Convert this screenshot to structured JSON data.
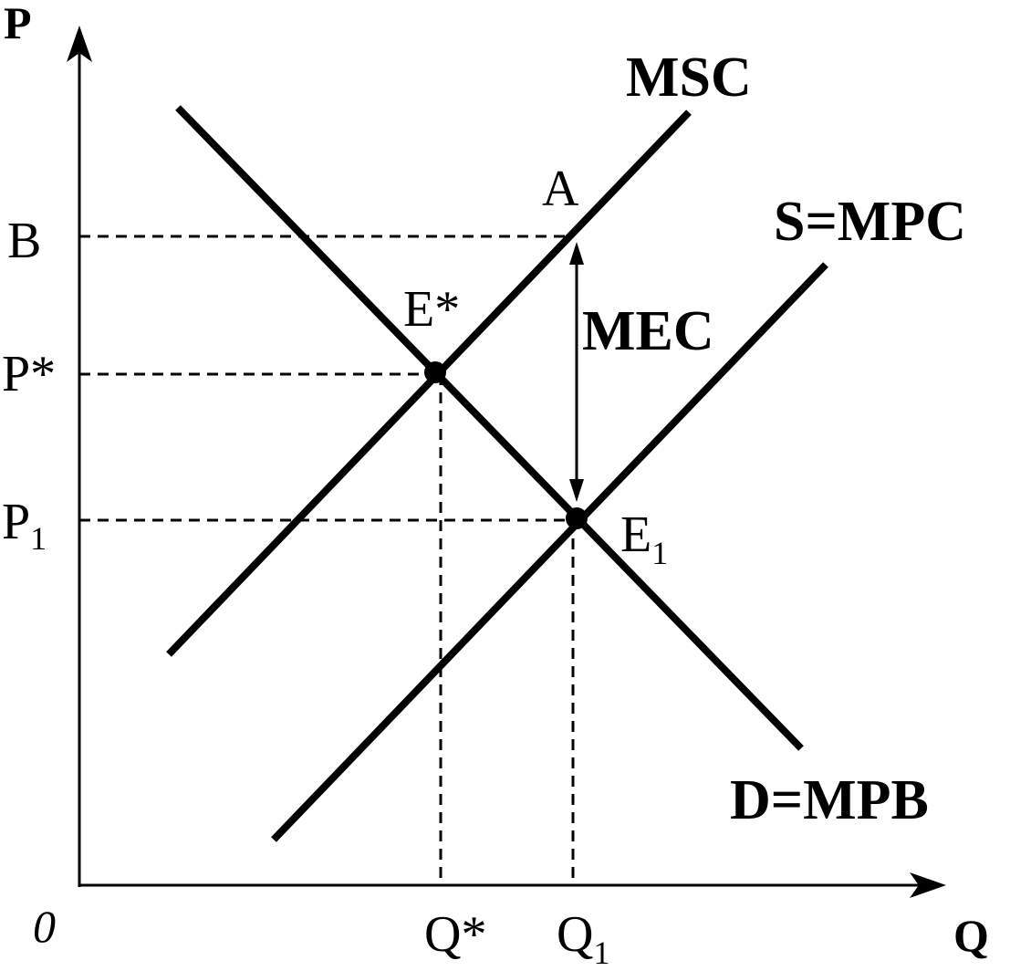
{
  "axes": {
    "y_label": "P",
    "x_label": "Q",
    "origin": "0"
  },
  "curves": [
    {
      "label": "MSC"
    },
    {
      "label": "S=MPC"
    },
    {
      "label": "D=MPB"
    }
  ],
  "points": [
    {
      "label": "A"
    },
    {
      "label": "E*"
    },
    {
      "label": "E",
      "sub": "1"
    }
  ],
  "price_labels": [
    {
      "label": "B"
    },
    {
      "label": "P*"
    },
    {
      "label": "P",
      "sub": "1"
    }
  ],
  "quantity_labels": [
    {
      "label": "Q*"
    },
    {
      "label": "Q",
      "sub": "1"
    }
  ],
  "gap_label": "MEC"
}
